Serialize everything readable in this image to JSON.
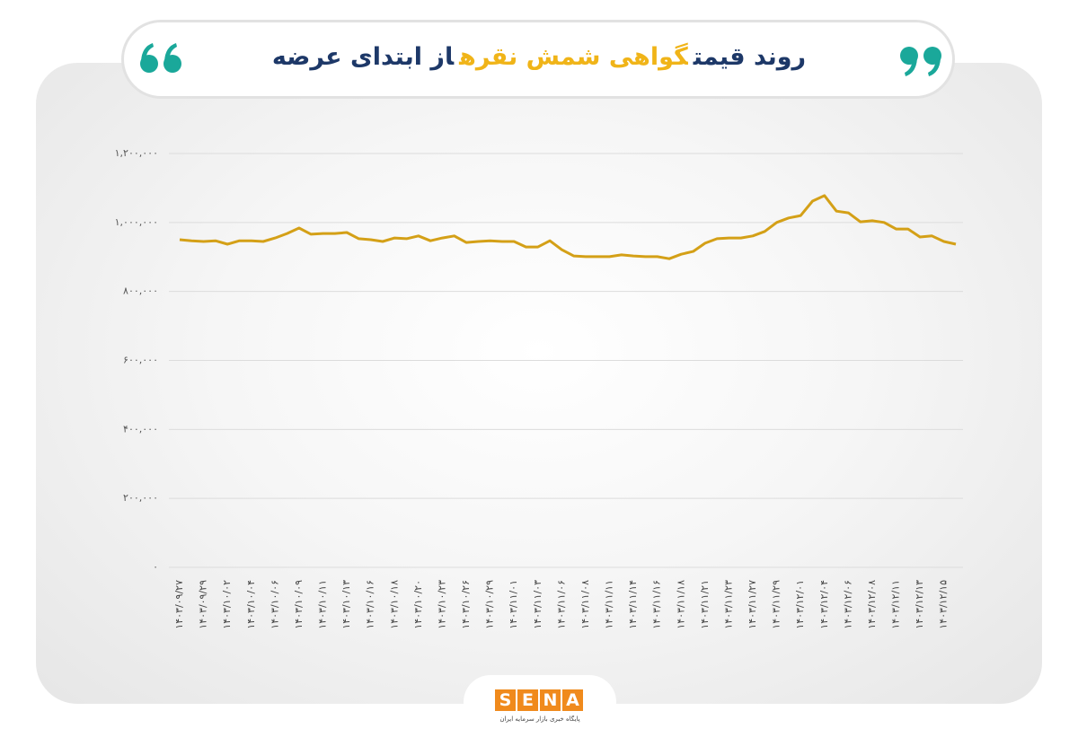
{
  "chart_data": {
    "type": "line",
    "title_parts": [
      {
        "text": "روند قیمت",
        "color": "#1d3868"
      },
      {
        "text": "گواهی شمش نقره",
        "color": "#f0b418"
      },
      {
        "text": "از ابتدای عرضه",
        "color": "#1d3868"
      }
    ],
    "categories": [
      "۱۴۰۳/۰۹/۲۷",
      null,
      "۱۴۰۳/۰۹/۲۹",
      null,
      "۱۴۰۳/۱۰/۰۲",
      null,
      "۱۴۰۳/۱۰/۰۴",
      null,
      "۱۴۰۳/۱۰/۰۶",
      null,
      "۱۴۰۳/۱۰/۰۹",
      null,
      "۱۴۰۳/۱۰/۱۱",
      null,
      "۱۴۰۳/۱۰/۱۳",
      null,
      "۱۴۰۳/۱۰/۱۶",
      null,
      "۱۴۰۳/۱۰/۱۸",
      null,
      "۱۴۰۳/۱۰/۲۰",
      null,
      "۱۴۰۳/۱۰/۲۳",
      null,
      "۱۴۰۳/۱۰/۲۶",
      null,
      "۱۴۰۳/۱۰/۲۹",
      null,
      "۱۴۰۳/۱۱/۰۱",
      null,
      "۱۴۰۳/۱۱/۰۳",
      null,
      "۱۴۰۳/۱۱/۰۶",
      null,
      "۱۴۰۳/۱۱/۰۸",
      null,
      "۱۴۰۳/۱۱/۱۱",
      null,
      "۱۴۰۳/۱۱/۱۴",
      null,
      "۱۴۰۳/۱۱/۱۶",
      null,
      "۱۴۰۳/۱۱/۱۸",
      null,
      "۱۴۰۳/۱۱/۲۱",
      null,
      "۱۴۰۳/۱۱/۲۳",
      null,
      "۱۴۰۳/۱۱/۲۷",
      null,
      "۱۴۰۳/۱۱/۲۹",
      null,
      "۱۴۰۳/۱۲/۰۱",
      null,
      "۱۴۰۳/۱۲/۰۴",
      null,
      "۱۴۰۳/۱۲/۰۶",
      null,
      "۱۴۰۳/۱۲/۰۸",
      null,
      "۱۴۰۳/۱۲/۱۱",
      null,
      "۱۴۰۳/۱۲/۱۳",
      null,
      "۱۴۰۳/۱۲/۱۵",
      null
    ],
    "values": [
      950000,
      947000,
      945000,
      947000,
      937000,
      947000,
      947000,
      945000,
      955000,
      968000,
      984000,
      966000,
      968000,
      968000,
      971000,
      953000,
      950000,
      945000,
      955000,
      953000,
      961000,
      947000,
      955000,
      961000,
      942000,
      945000,
      947000,
      945000,
      945000,
      929000,
      929000,
      947000,
      921000,
      903000,
      901000,
      901000,
      901000,
      906000,
      903000,
      901000,
      901000,
      895000,
      908000,
      916000,
      940000,
      953000,
      955000,
      955000,
      961000,
      974000,
      1000000,
      1013000,
      1020000,
      1062000,
      1078000,
      1033000,
      1028000,
      1002000,
      1005000,
      1000000,
      981000,
      981000,
      958000,
      961000,
      945000,
      937000
    ],
    "color": "#d4a017",
    "ylim": [
      0,
      1200000
    ],
    "yticks": [
      {
        "value": 0,
        "label": "۰"
      },
      {
        "value": 200000,
        "label": "۲۰۰,۰۰۰"
      },
      {
        "value": 400000,
        "label": "۴۰۰,۰۰۰"
      },
      {
        "value": 600000,
        "label": "۶۰۰,۰۰۰"
      },
      {
        "value": 800000,
        "label": "۸۰۰,۰۰۰"
      },
      {
        "value": 1000000,
        "label": "۱,۰۰۰,۰۰۰"
      },
      {
        "value": 1200000,
        "label": "۱,۲۰۰,۰۰۰"
      }
    ],
    "grid": true
  },
  "logo": {
    "letters": [
      "S",
      "E",
      "N",
      "A"
    ],
    "subtitle": "پایگاه خبری بازار سرمایه ایران"
  }
}
